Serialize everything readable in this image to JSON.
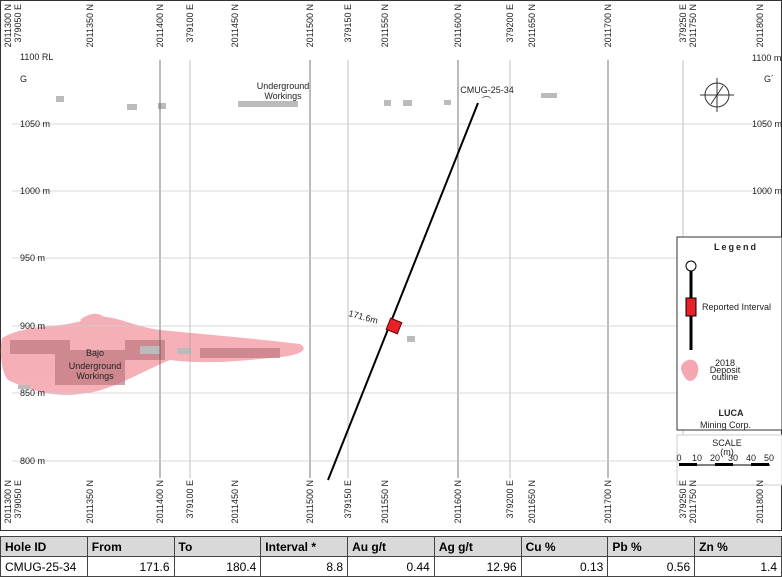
{
  "section": {
    "top_labels": [
      "2011300 N",
      "379050 E",
      "2011350 N",
      "2011400 N",
      "379100 E",
      "2011450 N",
      "2011500 N",
      "379150 E",
      "2011550 N",
      "2011600 N",
      "379200 E",
      "2011650 N",
      "2011700 N",
      "379250 E",
      "2011750 N",
      "2011800 N"
    ],
    "bottom_labels": [
      "2011300 N",
      "379050 E",
      "2011350 N",
      "2011400 N",
      "379100 E",
      "2011450 N",
      "2011500 N",
      "379150 E",
      "2011550 N",
      "2011600 N",
      "379200 E",
      "2011650 N",
      "2011700 N",
      "379250 E",
      "2011750 N",
      "2011800 N"
    ],
    "rl_label": "1100 RL",
    "left_elevations": [
      "1050 m",
      "1000 m",
      "950 m",
      "900 m",
      "850 m",
      "800 m"
    ],
    "right_elevations": [
      "1100 m",
      "1050 m",
      "1000 m"
    ],
    "section_start": "G",
    "section_end": "G´",
    "workings_label": [
      "Underground",
      "Workings"
    ],
    "hole_label": "CMUG-25-34",
    "bajo_label": [
      "Bajo",
      "Underground",
      "Workings"
    ],
    "depth_label": "171.6m",
    "legend": {
      "title": "Legend",
      "interval": "Reported Interval",
      "outline": [
        "2018",
        "Deposit",
        "outline"
      ],
      "logo": "LUCA",
      "logo_sub": "Mining Corp."
    },
    "scale": {
      "title": "SCALE",
      "unit": "(m)",
      "ticks": [
        "0",
        "10",
        "20",
        "30",
        "40",
        "50"
      ]
    }
  },
  "table": {
    "header": [
      "Hole ID",
      "From",
      "To",
      "Interval *",
      "Au g/t",
      "Ag g/t",
      "Cu %",
      "Pb %",
      "Zn %"
    ],
    "rows": [
      [
        "CMUG-25-34",
        171.6,
        180.4,
        8.8,
        0.44,
        12.96,
        0.13,
        0.56,
        1.4
      ]
    ]
  }
}
